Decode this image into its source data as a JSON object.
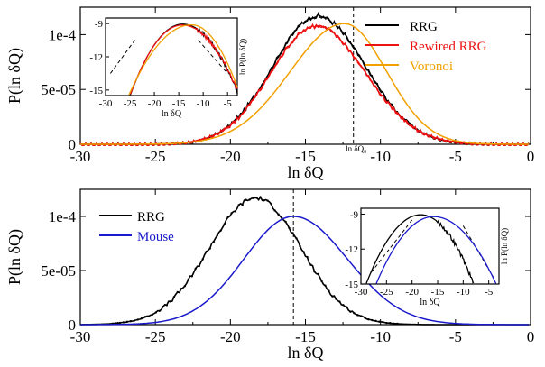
{
  "chart_data": [
    {
      "type": "line",
      "panel": "top",
      "xlabel": "ln δQ",
      "ylabel": "P(ln δQ)",
      "xlim": [
        -30,
        0
      ],
      "ylim": [
        0,
        0.000125
      ],
      "xticks": [
        "-30",
        "-25",
        "-20",
        "-15",
        "-10",
        "-5",
        "0"
      ],
      "xtick_values": [
        -30,
        -25,
        -20,
        -15,
        -10,
        -5,
        0
      ],
      "yticks": [
        "0",
        "5e-05",
        "1e-4"
      ],
      "ytick_values": [
        0,
        5e-05,
        0.0001
      ],
      "annotation": {
        "label": "ln δQ₀",
        "x": -11.8,
        "style": "dashed vertical line"
      },
      "legend_position": "top-right",
      "series": [
        {
          "name": "RRG",
          "color": "#000000",
          "peak_x": -14.2,
          "peak_y": 0.000117,
          "left_width": 3.0,
          "right_width": 3.2,
          "noise": 1.5e-06,
          "x": [
            -30,
            -26,
            -24,
            -22,
            -20,
            -18,
            -16,
            -14.2,
            -12,
            -10,
            -8,
            -6,
            -4,
            -2,
            0
          ],
          "y": [
            0,
            2e-07,
            1e-06,
            4e-06,
            1.4e-05,
            4.3e-05,
            9.4e-05,
            0.000117,
            9.4e-05,
            5.4e-05,
            2e-05,
            5e-06,
            1e-06,
            1e-07,
            0
          ]
        },
        {
          "name": "Rewired RRG",
          "color": "#ee1111",
          "peak_x": -14.3,
          "peak_y": 0.000108,
          "left_width": 3.0,
          "right_width": 3.3,
          "noise": 1.5e-06,
          "x": [
            -30,
            -26,
            -24,
            -22,
            -20,
            -18,
            -16,
            -14.3,
            -12,
            -10,
            -8,
            -6,
            -4,
            -2,
            0
          ],
          "y": [
            0,
            2e-07,
            1e-06,
            4e-06,
            1.3e-05,
            4e-05,
            8.8e-05,
            0.000108,
            8.8e-05,
            5.2e-05,
            2e-05,
            5e-06,
            1e-06,
            1e-07,
            0
          ]
        },
        {
          "name": "Voronoi",
          "color": "#f2a000",
          "peak_x": -12.4,
          "peak_y": 0.00011,
          "left_width": 3.6,
          "right_width": 2.8,
          "noise": 0,
          "x": [
            -30,
            -26,
            -24,
            -22,
            -20,
            -18,
            -16,
            -14,
            -12.4,
            -10,
            -8,
            -6,
            -4,
            -2,
            0
          ],
          "y": [
            0,
            1e-07,
            1e-06,
            3e-06,
            9e-06,
            2.4e-05,
            5.5e-05,
            9e-05,
            0.00011,
            7.4e-05,
            3.3e-05,
            8e-06,
            1e-06,
            1e-07,
            0
          ]
        }
      ],
      "inset": {
        "type": "line",
        "xlabel": "ln δQ",
        "ylabel": "ln P(ln δQ)",
        "xlim": [
          -30,
          -3
        ],
        "ylim": [
          -15.5,
          -8.5
        ],
        "xticks": [
          "-30",
          "-25",
          "-20",
          "-15",
          "-10",
          "-5"
        ],
        "xtick_values": [
          -30,
          -25,
          -20,
          -15,
          -10,
          -5
        ],
        "yticks": [
          "-9",
          "-12",
          "-15"
        ],
        "ytick_values": [
          -9,
          -12,
          -15
        ],
        "guides": [
          {
            "x": [
              -29,
              -24
            ],
            "y": [
              -13.5,
              -10.5
            ],
            "style": "dashed"
          },
          {
            "x": [
              -11,
              -5
            ],
            "y": [
              -10.5,
              -13.5
            ],
            "style": "dashed"
          }
        ]
      }
    },
    {
      "type": "line",
      "panel": "bottom",
      "xlabel": "ln δQ",
      "ylabel": "P(ln δQ)",
      "xlim": [
        -30,
        0
      ],
      "ylim": [
        0,
        0.000125
      ],
      "xticks": [
        "-30",
        "-25",
        "-20",
        "-15",
        "-10",
        "-5",
        "0"
      ],
      "xtick_values": [
        -30,
        -25,
        -20,
        -15,
        -10,
        -5,
        0
      ],
      "yticks": [
        "0",
        "5e-05",
        "1e-4"
      ],
      "ytick_values": [
        0,
        5e-05,
        0.0001
      ],
      "annotation": {
        "label": "",
        "x": -15.8,
        "style": "dashed vertical line"
      },
      "legend_position": "top-left",
      "series": [
        {
          "name": "RRG",
          "color": "#000000",
          "peak_x": -18.3,
          "peak_y": 0.000117,
          "left_width": 3.1,
          "right_width": 3.0,
          "noise": 1.8e-06,
          "markers": true,
          "x": [
            -30,
            -26,
            -24,
            -22,
            -20,
            -18.3,
            -16,
            -14,
            -12,
            -10,
            -8,
            -6,
            -4,
            -2,
            0
          ],
          "y": [
            0,
            2e-06,
            7e-06,
            2.9e-05,
            8.6e-05,
            0.000117,
            6e-05,
            2.2e-05,
            8e-06,
            2e-06,
            5e-07,
            1e-07,
            0,
            0,
            0
          ]
        },
        {
          "name": "Mouse",
          "color": "#1a1acc",
          "peak_x": -15.8,
          "peak_y": 0.0001,
          "left_width": 3.3,
          "right_width": 3.6,
          "noise": 0,
          "x": [
            -30,
            -26,
            -24,
            -22,
            -20,
            -18,
            -15.8,
            -14,
            -12,
            -10,
            -8,
            -6,
            -4,
            -2,
            0
          ],
          "y": [
            0,
            5e-07,
            2e-06,
            8e-06,
            2.5e-05,
            5.7e-05,
            0.0001,
            8.5e-05,
            5.6e-05,
            2.6e-05,
            8e-06,
            2e-06,
            3e-07,
            0,
            0
          ]
        }
      ],
      "inset": {
        "type": "line",
        "xlabel": "ln δQ",
        "ylabel": "ln P(ln δQ)",
        "xlim": [
          -30,
          -3
        ],
        "ylim": [
          -15,
          -8.5
        ],
        "xticks": [
          "-30",
          "-25",
          "-20",
          "-15",
          "-10",
          "-5"
        ],
        "xtick_values": [
          -30,
          -25,
          -20,
          -15,
          -10,
          -5
        ],
        "yticks": [
          "-9",
          "-12",
          "-15"
        ],
        "ytick_values": [
          -9,
          -12,
          -15
        ],
        "guides": [
          {
            "x": [
              -28,
              -20
            ],
            "y": [
              -14,
              -9.5
            ],
            "style": "dashed"
          },
          {
            "x": [
              -10,
              -4
            ],
            "y": [
              -10,
              -14.5
            ],
            "style": "dashed"
          }
        ]
      }
    }
  ]
}
